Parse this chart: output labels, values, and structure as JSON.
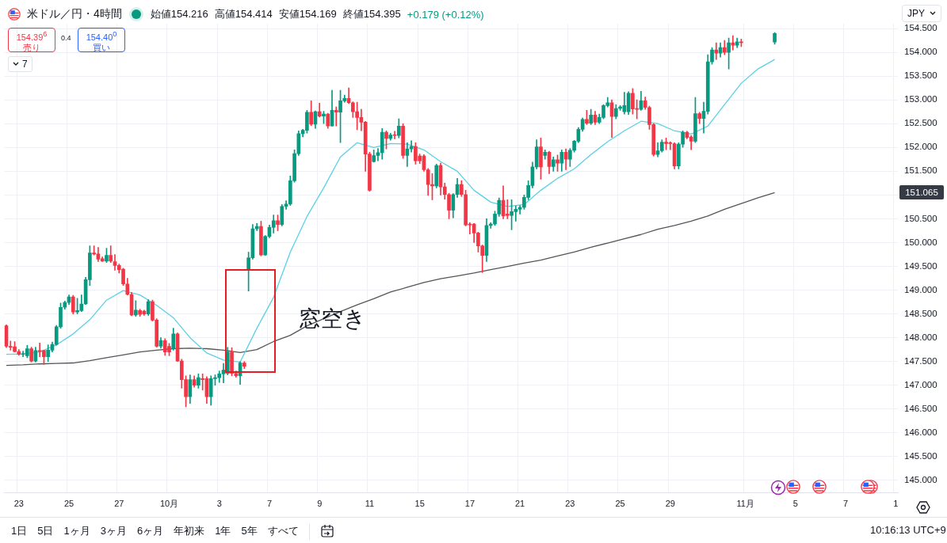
{
  "chart_data": {
    "type": "candlestick",
    "title": "米ドル／円・4時間",
    "categories": [
      null,
      null,
      null,
      "23",
      null,
      null,
      null,
      null,
      null,
      null,
      null,
      null,
      null,
      null,
      null,
      "25",
      null,
      null,
      null,
      null,
      null,
      null,
      null,
      null,
      null,
      null,
      null,
      "27",
      null,
      null,
      null,
      null,
      null,
      null,
      null,
      null,
      null,
      null,
      null,
      "10月",
      null,
      null,
      null,
      null,
      null,
      null,
      null,
      null,
      null,
      null,
      null,
      "3",
      null,
      null,
      null,
      null,
      null,
      null,
      null,
      null,
      null,
      null,
      null,
      "7",
      null,
      null,
      null,
      null,
      null,
      null,
      null,
      null,
      null,
      null,
      null,
      "9",
      null,
      null,
      null,
      null,
      null,
      null,
      null,
      null,
      null,
      null,
      null,
      "11",
      null,
      null,
      null,
      null,
      null,
      null,
      null,
      null,
      null,
      null,
      null,
      "15",
      null,
      null,
      null,
      null,
      null,
      null,
      null,
      null,
      null,
      null,
      null,
      "17",
      null,
      null,
      null,
      null,
      null,
      null,
      null,
      null,
      null,
      null,
      null,
      "21",
      null,
      null,
      null,
      null,
      null,
      null,
      null,
      null,
      null,
      null,
      null,
      "23",
      null,
      null,
      null,
      null,
      null,
      null,
      null,
      null,
      null,
      null,
      null,
      "25",
      null,
      null,
      null,
      null,
      null,
      null,
      null,
      null,
      null,
      null,
      null,
      "29",
      null,
      null,
      null,
      null,
      null,
      null,
      null,
      null,
      null,
      null,
      null,
      null,
      null,
      null,
      null,
      null,
      null,
      "11月",
      null,
      null,
      null,
      null,
      null,
      null,
      null,
      null,
      null,
      null,
      null,
      "5",
      null,
      null,
      null,
      null,
      null,
      null,
      null,
      null,
      null,
      null,
      null,
      "7",
      null,
      null,
      null,
      null,
      null,
      null,
      null,
      null,
      null,
      null,
      null,
      "1"
    ],
    "series": [
      {
        "type": "line",
        "color": "#5ad1e6",
        "values": [
          147.65,
          null,
          null,
          null,
          147.66,
          null,
          null,
          null,
          147.7,
          null,
          null,
          null,
          147.85,
          null,
          null,
          null,
          148.08,
          null,
          null,
          null,
          148.38,
          null,
          null,
          null,
          148.79,
          null,
          null,
          null,
          148.99,
          null,
          null,
          null,
          148.9,
          null,
          null,
          null,
          148.68,
          null,
          null,
          null,
          148.42,
          null,
          null,
          null,
          148.0,
          null,
          null,
          null,
          147.68,
          null,
          null,
          null,
          147.53,
          null,
          null,
          null,
          147.49,
          null,
          null,
          null,
          148.2,
          null,
          null,
          null,
          148.85,
          null,
          null,
          null,
          149.8,
          null,
          null,
          null,
          150.55,
          null,
          null,
          null,
          151.15,
          null,
          null,
          null,
          151.8,
          null,
          null,
          null,
          152.1,
          null,
          null,
          null,
          152.0,
          null,
          null,
          null,
          152.08,
          null,
          null,
          null,
          152.07,
          null,
          null,
          null,
          151.95,
          null,
          null,
          null,
          151.7,
          null,
          null,
          null,
          151.5,
          null,
          null,
          null,
          151.1,
          null,
          null,
          null,
          150.85,
          null,
          null,
          null,
          150.76,
          null,
          null,
          null,
          150.8,
          null,
          null,
          null,
          151.1,
          null,
          null,
          null,
          151.35,
          null,
          null,
          null,
          151.55,
          null,
          null,
          null,
          151.85,
          null,
          null,
          null,
          152.12,
          null,
          null,
          null,
          152.35,
          null,
          null,
          null,
          152.55,
          null,
          null,
          null,
          152.5,
          null,
          null,
          null,
          152.35,
          null,
          null,
          null,
          152.28,
          null,
          null,
          null,
          152.45,
          null,
          null,
          null,
          152.9,
          null,
          null,
          null,
          153.35,
          null,
          null,
          null,
          153.65,
          null,
          null,
          null,
          153.85,
          null,
          null,
          null,
          null,
          null,
          null,
          null,
          null,
          null,
          null,
          null,
          null,
          null,
          null,
          null,
          null,
          null,
          null,
          null,
          null,
          null,
          null,
          null,
          null,
          null,
          null,
          null,
          null,
          null
        ]
      },
      {
        "type": "line",
        "color": "#555555",
        "values": [
          147.42,
          null,
          null,
          null,
          147.43,
          null,
          null,
          null,
          147.45,
          null,
          null,
          null,
          147.46,
          null,
          null,
          null,
          147.47,
          null,
          null,
          null,
          147.52,
          null,
          null,
          null,
          147.58,
          null,
          null,
          null,
          147.64,
          null,
          null,
          null,
          147.7,
          null,
          null,
          null,
          147.74,
          null,
          null,
          null,
          147.77,
          null,
          null,
          null,
          147.78,
          null,
          null,
          null,
          147.77,
          null,
          null,
          null,
          147.74,
          null,
          null,
          null,
          147.69,
          null,
          null,
          null,
          147.75,
          null,
          null,
          null,
          147.92,
          null,
          null,
          null,
          148.05,
          null,
          null,
          null,
          148.25,
          null,
          null,
          null,
          148.4,
          null,
          null,
          null,
          148.55,
          null,
          null,
          null,
          148.69,
          null,
          null,
          null,
          148.82,
          null,
          null,
          null,
          148.96,
          null,
          null,
          null,
          149.06,
          null,
          null,
          null,
          149.16,
          null,
          null,
          null,
          149.24,
          null,
          null,
          null,
          149.3,
          null,
          null,
          null,
          149.36,
          null,
          null,
          null,
          149.43,
          null,
          null,
          null,
          149.5,
          null,
          null,
          null,
          149.57,
          null,
          null,
          null,
          149.63,
          null,
          null,
          null,
          149.72,
          null,
          null,
          null,
          149.8,
          null,
          null,
          null,
          149.9,
          null,
          null,
          null,
          149.99,
          null,
          null,
          null,
          150.08,
          null,
          null,
          null,
          150.17,
          null,
          null,
          null,
          150.28,
          null,
          null,
          null,
          150.36,
          null,
          null,
          null,
          150.45,
          null,
          null,
          null,
          150.56,
          null,
          null,
          null,
          150.7,
          null,
          null,
          null,
          150.82,
          null,
          null,
          null,
          150.94,
          null,
          null,
          null,
          151.05,
          null,
          null,
          null,
          null,
          null,
          null,
          null,
          null,
          null,
          null,
          null,
          null,
          null,
          null,
          null,
          null,
          null,
          null,
          null,
          null,
          null,
          null,
          null,
          null,
          null,
          null,
          null,
          null,
          null
        ]
      },
      {
        "ohlc": [
          [
            148.25,
            148.27,
            147.79,
            147.82
          ],
          [
            147.82,
            147.93,
            147.74,
            147.8
          ],
          [
            147.81,
            147.92,
            147.7,
            147.71
          ],
          [
            147.71,
            147.75,
            147.63,
            147.65
          ],
          [
            147.65,
            147.72,
            147.6,
            147.66
          ],
          [
            147.62,
            147.84,
            147.58,
            147.77
          ],
          [
            147.77,
            147.8,
            147.49,
            147.51
          ],
          [
            147.51,
            147.8,
            147.49,
            147.73
          ],
          [
            147.73,
            147.89,
            147.6,
            147.71
          ],
          [
            147.73,
            147.74,
            147.44,
            147.6
          ],
          [
            147.6,
            147.85,
            147.5,
            147.74
          ],
          [
            147.74,
            147.91,
            147.7,
            147.86
          ],
          [
            147.86,
            148.26,
            147.84,
            148.23
          ],
          [
            148.23,
            148.73,
            148.2,
            148.64
          ],
          [
            148.64,
            148.77,
            148.6,
            148.74
          ],
          [
            148.74,
            148.9,
            148.7,
            148.86
          ],
          [
            148.86,
            148.89,
            148.5,
            148.54
          ],
          [
            148.54,
            148.83,
            148.5,
            148.57
          ],
          [
            148.57,
            148.9,
            148.55,
            148.71
          ],
          [
            148.71,
            149.27,
            148.7,
            149.22
          ],
          [
            149.22,
            149.93,
            149.1,
            149.78
          ],
          [
            149.78,
            149.93,
            149.74,
            149.76
          ],
          [
            149.76,
            149.9,
            149.6,
            149.65
          ],
          [
            149.66,
            149.7,
            149.6,
            149.61
          ],
          [
            149.61,
            149.88,
            149.58,
            149.73
          ],
          [
            149.73,
            149.93,
            149.58,
            149.61
          ],
          [
            149.6,
            149.75,
            149.42,
            149.52
          ],
          [
            149.52,
            149.55,
            149.36,
            149.43
          ],
          [
            149.44,
            149.46,
            149.1,
            149.13
          ],
          [
            149.13,
            149.25,
            148.9,
            148.91
          ],
          [
            148.91,
            148.95,
            148.46,
            148.48
          ],
          [
            148.48,
            148.78,
            148.45,
            148.58
          ],
          [
            148.57,
            148.6,
            148.45,
            148.49
          ],
          [
            148.56,
            148.58,
            148.47,
            148.5
          ],
          [
            148.5,
            148.8,
            148.47,
            148.76
          ],
          [
            148.76,
            148.79,
            148.35,
            148.37
          ],
          [
            148.37,
            148.4,
            147.8,
            147.82
          ],
          [
            147.82,
            148.0,
            147.78,
            147.94
          ],
          [
            147.94,
            147.98,
            147.63,
            147.7
          ],
          [
            147.82,
            147.88,
            147.62,
            147.7
          ],
          [
            147.77,
            148.2,
            147.74,
            148.08
          ],
          [
            148.08,
            148.1,
            147.5,
            147.51
          ],
          [
            147.51,
            147.55,
            146.94,
            147.12
          ],
          [
            147.12,
            147.2,
            146.55,
            146.76
          ],
          [
            146.76,
            147.22,
            146.62,
            147.12
          ],
          [
            147.12,
            147.2,
            146.96,
            147.0
          ],
          [
            147.0,
            147.24,
            146.94,
            147.16
          ],
          [
            147.14,
            147.24,
            146.9,
            147.12
          ],
          [
            147.14,
            147.18,
            146.62,
            146.76
          ],
          [
            146.76,
            147.2,
            146.58,
            147.14
          ],
          [
            147.14,
            147.22,
            147.0,
            147.16
          ],
          [
            147.16,
            147.3,
            147.06,
            147.24
          ],
          [
            147.24,
            147.46,
            147.05,
            147.32
          ],
          [
            147.25,
            147.8,
            147.22,
            147.7
          ],
          [
            147.7,
            147.79,
            147.2,
            147.25
          ],
          [
            147.25,
            147.3,
            147.17,
            147.2
          ],
          [
            147.2,
            147.5,
            147.02,
            147.47
          ],
          [
            147.47,
            147.5,
            147.35,
            147.4
          ],
          [
            149.44,
            149.8,
            148.98,
            149.68
          ],
          [
            149.68,
            150.38,
            149.65,
            150.29
          ],
          [
            150.29,
            150.4,
            150.25,
            150.34
          ],
          [
            150.34,
            150.45,
            149.72,
            149.74
          ],
          [
            149.74,
            150.15,
            149.73,
            150.13
          ],
          [
            150.13,
            150.37,
            150.1,
            150.32
          ],
          [
            150.32,
            150.58,
            150.2,
            150.46
          ],
          [
            150.46,
            150.58,
            150.25,
            150.38
          ],
          [
            150.38,
            150.8,
            150.35,
            150.76
          ],
          [
            150.76,
            150.88,
            150.7,
            150.81
          ],
          [
            150.81,
            151.4,
            150.78,
            151.3
          ],
          [
            151.3,
            151.95,
            151.27,
            151.87
          ],
          [
            151.87,
            152.35,
            151.83,
            152.29
          ],
          [
            152.29,
            152.38,
            152.22,
            152.36
          ],
          [
            152.36,
            152.78,
            152.3,
            152.74
          ],
          [
            152.74,
            152.98,
            152.46,
            152.49
          ],
          [
            152.49,
            152.77,
            152.4,
            152.75
          ],
          [
            152.75,
            152.93,
            152.64,
            152.66
          ],
          [
            152.66,
            152.76,
            152.5,
            152.7
          ],
          [
            152.7,
            152.72,
            152.4,
            152.45
          ],
          [
            152.45,
            153.2,
            152.45,
            152.78
          ],
          [
            152.78,
            152.85,
            152.45,
            152.74
          ],
          [
            152.74,
            153.2,
            152.1,
            152.98
          ],
          [
            152.98,
            153.1,
            152.95,
            153.03
          ],
          [
            153.03,
            153.25,
            152.92,
            152.94
          ],
          [
            152.94,
            152.96,
            152.63,
            152.75
          ],
          [
            152.75,
            152.95,
            152.37,
            152.63
          ],
          [
            152.63,
            152.8,
            152.35,
            152.53
          ],
          [
            152.53,
            152.55,
            151.5,
            151.86
          ],
          [
            151.86,
            151.9,
            151.08,
            151.1
          ],
          [
            151.7,
            151.95,
            151.69,
            151.83
          ],
          [
            151.83,
            151.98,
            151.72,
            151.89
          ],
          [
            151.89,
            152.4,
            151.75,
            152.32
          ],
          [
            152.32,
            152.35,
            151.97,
            152.19
          ],
          [
            152.19,
            152.3,
            152.15,
            152.26
          ],
          [
            152.26,
            152.34,
            152.18,
            152.25
          ],
          [
            152.25,
            152.6,
            152.2,
            152.45
          ],
          [
            152.45,
            152.5,
            151.77,
            151.83
          ],
          [
            151.83,
            152.1,
            151.6,
            151.97
          ],
          [
            151.97,
            152.14,
            151.9,
            152.02
          ],
          [
            152.02,
            152.1,
            151.65,
            151.72
          ],
          [
            151.82,
            151.86,
            151.66,
            151.72
          ],
          [
            151.82,
            151.85,
            151.5,
            151.53
          ],
          [
            151.53,
            151.56,
            150.99,
            151.22
          ],
          [
            151.22,
            151.45,
            150.9,
            151.19
          ],
          [
            151.19,
            151.65,
            151.15,
            151.62
          ],
          [
            151.62,
            151.67,
            151.0,
            151.17
          ],
          [
            151.17,
            151.25,
            150.91,
            151.01
          ],
          [
            151.01,
            151.04,
            150.5,
            150.68
          ],
          [
            150.68,
            151.03,
            150.52,
            151.01
          ],
          [
            151.01,
            151.35,
            150.95,
            151.22
          ],
          [
            151.22,
            151.3,
            150.97,
            151.01
          ],
          [
            151.01,
            151.1,
            150.35,
            150.37
          ],
          [
            150.39,
            150.42,
            150.18,
            150.37
          ],
          [
            150.39,
            150.4,
            150.0,
            150.2
          ],
          [
            150.2,
            150.22,
            149.8,
            149.93
          ],
          [
            149.93,
            149.95,
            149.37,
            149.73
          ],
          [
            149.73,
            150.5,
            149.6,
            150.36
          ],
          [
            150.36,
            150.42,
            150.3,
            150.39
          ],
          [
            150.39,
            150.66,
            150.36,
            150.6
          ],
          [
            150.6,
            150.94,
            150.55,
            150.89
          ],
          [
            150.89,
            151.19,
            150.5,
            150.56
          ],
          [
            150.6,
            150.9,
            150.5,
            150.57
          ],
          [
            150.57,
            150.9,
            150.27,
            150.65
          ],
          [
            150.65,
            150.77,
            150.45,
            150.7
          ],
          [
            150.7,
            150.78,
            150.6,
            150.74
          ],
          [
            150.74,
            151.0,
            150.7,
            150.95
          ],
          [
            150.95,
            151.3,
            150.9,
            151.2
          ],
          [
            151.2,
            151.69,
            151.15,
            151.59
          ],
          [
            151.59,
            152.16,
            151.55,
            152.01
          ],
          [
            152.01,
            152.2,
            151.33,
            151.59
          ],
          [
            151.83,
            151.95,
            151.75,
            151.9
          ],
          [
            151.9,
            151.92,
            151.45,
            151.6
          ],
          [
            151.6,
            151.8,
            151.5,
            151.74
          ],
          [
            151.74,
            151.84,
            151.5,
            151.67
          ],
          [
            151.67,
            151.95,
            151.5,
            151.9
          ],
          [
            151.9,
            151.97,
            151.53,
            151.75
          ],
          [
            151.75,
            151.98,
            151.6,
            151.94
          ],
          [
            151.94,
            152.15,
            151.9,
            152.13
          ],
          [
            152.13,
            152.42,
            152.1,
            152.38
          ],
          [
            152.38,
            152.62,
            152.34,
            152.59
          ],
          [
            152.59,
            152.78,
            152.48,
            152.51
          ],
          [
            152.51,
            152.8,
            152.48,
            152.68
          ],
          [
            152.68,
            152.76,
            152.48,
            152.53
          ],
          [
            152.53,
            152.7,
            152.5,
            152.63
          ],
          [
            152.63,
            152.9,
            152.6,
            152.88
          ],
          [
            152.88,
            153.05,
            152.85,
            152.94
          ],
          [
            152.94,
            153.0,
            152.21,
            152.65
          ],
          [
            152.65,
            152.9,
            152.6,
            152.82
          ],
          [
            152.82,
            152.88,
            152.78,
            152.85
          ],
          [
            152.75,
            153.16,
            152.7,
            152.88
          ],
          [
            152.75,
            153.17,
            152.69,
            153.14
          ],
          [
            153.14,
            153.24,
            152.7,
            152.81
          ],
          [
            152.81,
            153.0,
            152.6,
            152.8
          ],
          [
            152.8,
            153.18,
            152.78,
            152.98
          ],
          [
            152.98,
            153.06,
            152.8,
            152.84
          ],
          [
            152.84,
            152.87,
            152.38,
            152.48
          ],
          [
            152.48,
            152.5,
            151.82,
            151.85
          ],
          [
            151.85,
            152.1,
            151.8,
            151.93
          ],
          [
            151.93,
            152.16,
            151.9,
            152.11
          ],
          [
            152.11,
            152.2,
            151.95,
            152.08
          ],
          [
            152.1,
            152.12,
            151.95,
            152.08
          ],
          [
            152.08,
            152.1,
            151.55,
            151.61
          ],
          [
            151.61,
            152.1,
            151.55,
            152.07
          ],
          [
            152.07,
            152.35,
            152.0,
            152.32
          ],
          [
            152.32,
            152.34,
            152.18,
            152.21
          ],
          [
            152.22,
            152.25,
            151.95,
            152.13
          ],
          [
            152.13,
            153.05,
            152.1,
            152.71
          ],
          [
            152.71,
            152.74,
            152.5,
            152.61
          ],
          [
            152.61,
            152.95,
            152.3,
            152.76
          ],
          [
            152.76,
            153.95,
            152.7,
            153.8
          ],
          [
            153.8,
            154.1,
            153.75,
            154.05
          ],
          [
            154.05,
            154.2,
            153.85,
            153.98
          ],
          [
            153.98,
            154.2,
            153.9,
            154.1
          ],
          [
            154.1,
            154.25,
            153.95,
            154.0
          ],
          [
            154.0,
            154.3,
            153.65,
            154.2
          ],
          [
            154.2,
            154.35,
            154.05,
            154.15
          ],
          [
            154.15,
            154.3,
            154.1,
            154.22
          ],
          [
            154.22,
            154.28,
            154.12,
            154.2
          ],
          null,
          null,
          null,
          null,
          null,
          null,
          null,
          [
            154.216,
            154.414,
            154.169,
            154.395
          ],
          null,
          null,
          null,
          null,
          null,
          null,
          null,
          null,
          null,
          null,
          null,
          null,
          null,
          null,
          null,
          null,
          null,
          null,
          null,
          null,
          null,
          null,
          null,
          null,
          null,
          null,
          null,
          null,
          null
        ],
        "colors": [
          "#f23645",
          "#f23645",
          "#f23645",
          "#f23645",
          "#089981",
          "#089981",
          "#f23645",
          "#089981",
          "#f23645",
          "#f23645",
          "#089981",
          "#089981",
          "#089981",
          "#089981",
          "#089981",
          "#089981",
          "#f23645",
          "#089981",
          "#089981",
          "#089981",
          "#089981",
          "#f23645",
          "#f23645",
          "#f23645",
          "#089981",
          "#f23645",
          "#f23645",
          "#f23645",
          "#f23645",
          "#f23645",
          "#f23645",
          "#089981",
          "#f23645",
          "#f23645",
          "#089981",
          "#f23645",
          "#f23645",
          "#089981",
          "#f23645",
          "#f23645",
          "#089981",
          "#f23645",
          "#f23645",
          "#f23645",
          "#089981",
          "#f23645",
          "#089981",
          "#f23645",
          "#f23645",
          "#089981",
          "#089981",
          "#089981",
          "#089981",
          "#089981",
          "#f23645",
          "#f23645",
          "#089981",
          "#f23645",
          "#089981",
          "#089981",
          "#089981",
          "#f23645",
          "#089981",
          "#089981",
          "#089981",
          "#f23645",
          "#089981",
          "#089981",
          "#089981",
          "#089981",
          "#089981",
          "#089981",
          "#089981",
          "#f23645",
          "#089981",
          "#f23645",
          "#089981",
          "#f23645",
          "#089981",
          "#f23645",
          "#089981",
          "#089981",
          "#f23645",
          "#f23645",
          "#f23645",
          "#f23645",
          "#f23645",
          "#f23645",
          "#089981",
          "#089981",
          "#089981",
          "#f23645",
          "#089981",
          "#f23645",
          "#089981",
          "#f23645",
          "#089981",
          "#089981",
          "#f23645",
          "#f23645",
          "#f23645",
          "#f23645",
          "#f23645",
          "#089981",
          "#f23645",
          "#f23645",
          "#f23645",
          "#089981",
          "#089981",
          "#f23645",
          "#f23645",
          "#f23645",
          "#f23645",
          "#f23645",
          "#f23645",
          "#089981",
          "#089981",
          "#089981",
          "#089981",
          "#f23645",
          "#f23645",
          "#089981",
          "#089981",
          "#089981",
          "#089981",
          "#089981",
          "#089981",
          "#089981",
          "#f23645",
          "#089981",
          "#f23645",
          "#089981",
          "#f23645",
          "#089981",
          "#f23645",
          "#089981",
          "#089981",
          "#089981",
          "#089981",
          "#f23645",
          "#089981",
          "#f23645",
          "#089981",
          "#089981",
          "#089981",
          "#f23645",
          "#089981",
          "#089981",
          "#089981",
          "#089981",
          "#f23645",
          "#f23645",
          "#089981",
          "#f23645",
          "#f23645",
          "#f23645",
          "#089981",
          "#089981",
          "#f23645",
          "#f23645",
          "#f23645",
          "#089981",
          "#089981",
          "#f23645",
          "#f23645",
          "#089981",
          "#f23645",
          "#089981",
          "#089981",
          "#089981",
          "#f23645",
          "#089981",
          "#f23645",
          "#089981",
          "#f23645",
          "#089981",
          "#f23645",
          null,
          null,
          null,
          null,
          null,
          null,
          null,
          "#089981",
          null,
          null,
          null,
          null,
          null,
          null,
          null,
          null,
          null,
          null,
          null,
          null,
          null,
          null,
          null,
          null,
          null,
          null,
          null,
          null,
          null,
          null,
          null,
          null,
          null,
          null,
          null,
          null,
          null
        ]
      }
    ],
    "ylim": [
      144.75,
      154.6
    ],
    "yticks": [
      {
        "value": 145,
        "label": "145.000"
      },
      {
        "value": 145.5,
        "label": "145.500"
      },
      {
        "value": 146,
        "label": "146.000"
      },
      {
        "value": 146.5,
        "label": "146.500"
      },
      {
        "value": 147,
        "label": "147.000"
      },
      {
        "value": 147.5,
        "label": "147.500"
      },
      {
        "value": 148,
        "label": "148.000"
      },
      {
        "value": 148.5,
        "label": "148.500"
      },
      {
        "value": 149,
        "label": "149.000"
      },
      {
        "value": 149.5,
        "label": "149.500"
      },
      {
        "value": 150,
        "label": "150.000"
      },
      {
        "value": 150.5,
        "label": "150.500"
      },
      {
        "value": 151,
        "label": null
      },
      {
        "value": 151.5,
        "label": "151.500"
      },
      {
        "value": 152,
        "label": "152.000"
      },
      {
        "value": 152.5,
        "label": "152.500"
      },
      {
        "value": 153,
        "label": "153.000"
      },
      {
        "value": 153.5,
        "label": "153.500"
      },
      {
        "value": 154,
        "label": "154.000"
      },
      {
        "value": 154.5,
        "label": "154.500"
      }
    ],
    "grid": true,
    "annotations": [
      "始値154.216",
      "高値154.414",
      "安値154.169",
      "終値154.395",
      "+0.179 (+0.12%)",
      "154.39$^{6}$",
      "売り",
      "0.4",
      "154.40$^{0}$",
      "買い",
      "7",
      {
        "text": "窓空き",
        "y": 148.4
      },
      "151.065",
      "JPY",
      "1日",
      "5日",
      "1ヶ月",
      "3ヶ月",
      "6ヶ月",
      "年初来",
      "1年",
      "5年",
      "すべて",
      "10:16:13 UTC+9"
    ]
  }
}
